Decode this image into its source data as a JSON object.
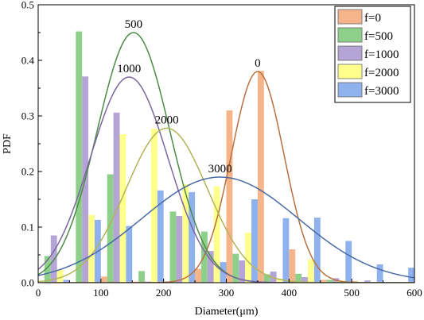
{
  "chart_data": {
    "type": "bar",
    "title": "",
    "xlabel": "Diameter(μm)",
    "ylabel": "PDF",
    "xlim": [
      0,
      600
    ],
    "ylim": [
      0,
      0.5
    ],
    "x_ticks": [
      0,
      100,
      200,
      300,
      400,
      500,
      600
    ],
    "y_ticks": [
      0.0,
      0.1,
      0.2,
      0.3,
      0.4,
      0.5
    ],
    "grid": false,
    "legend_position": "top-right",
    "bin_centers": [
      25,
      75,
      125,
      175,
      225,
      275,
      325,
      375,
      425,
      475,
      525,
      575
    ],
    "series": [
      {
        "name": "f=0",
        "color": "#f5b48a",
        "values": [
          0,
          0,
          0.011,
          0.002,
          0.002,
          0.025,
          0.31,
          0.381,
          0.06,
          0.005,
          0.003,
          0
        ],
        "fit": {
          "label": "0",
          "mean": 350,
          "sd": 42,
          "peak": 0.38,
          "color": "#b8703f"
        }
      },
      {
        "name": "f=500",
        "color": "#8ed08a",
        "values": [
          0.048,
          0.452,
          0.195,
          0.021,
          0.128,
          0.092,
          0.052,
          0.015,
          0.016,
          0.005,
          0,
          0
        ],
        "fit": {
          "label": "500",
          "mean": 152,
          "sd": 58,
          "peak": 0.45,
          "color": "#4d8a47"
        }
      },
      {
        "name": "f=1000",
        "color": "#b4a5d6",
        "values": [
          0.085,
          0.371,
          0.306,
          0.002,
          0.12,
          0.057,
          0.04,
          0.02,
          0.01,
          0.008,
          0.004,
          0
        ],
        "fit": {
          "label": "1000",
          "mean": 145,
          "sd": 62,
          "peak": 0.37,
          "color": "#7a679b"
        }
      },
      {
        "name": "f=2000",
        "color": "#ffff8c",
        "values": [
          0.023,
          0.122,
          0.267,
          0.277,
          0.177,
          0.173,
          0.09,
          0.007,
          0.042,
          0.004,
          0,
          0
        ],
        "fit": {
          "label": "2000",
          "mean": 205,
          "sd": 65,
          "peak": 0.278,
          "color": "#b3b35a"
        }
      },
      {
        "name": "f=3000",
        "color": "#8fb2ee",
        "values": [
          0.005,
          0.113,
          0.102,
          0.166,
          0.163,
          0.037,
          0.15,
          0.116,
          0.117,
          0.075,
          0.033,
          0.027
        ],
        "fit": {
          "label": "3000",
          "mean": 290,
          "sd": 125,
          "peak": 0.19,
          "color": "#4a6aa5"
        }
      }
    ]
  }
}
